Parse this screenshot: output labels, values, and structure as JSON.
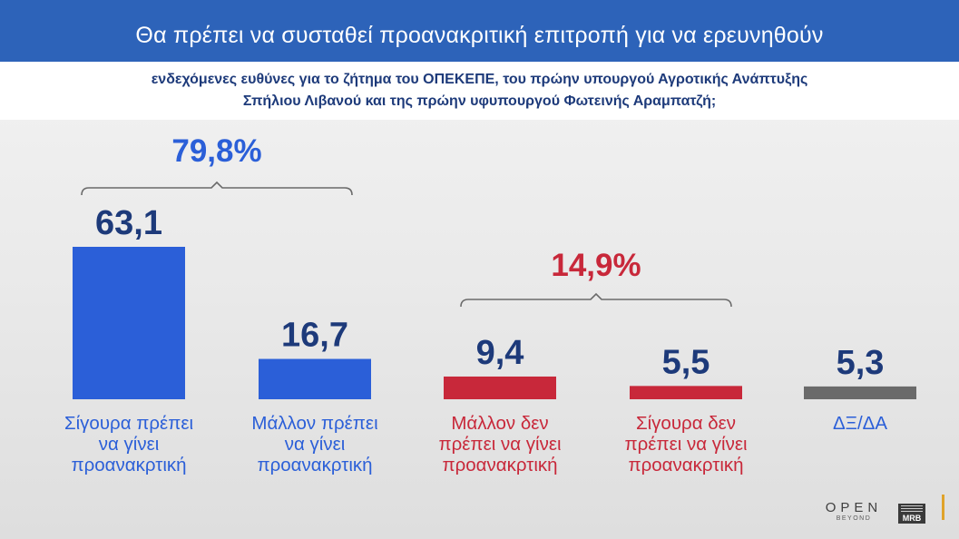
{
  "header": {
    "title": "Θα πρέπει να συσταθεί προανακριτική επιτροπή για να ερευνηθούν",
    "question_line1": "ενδεχόμενες ευθύνες για το ζήτημα του ΟΠΕΚΕΠΕ, του πρώην υπουργού Αγροτικής Ανάπτυξης",
    "question_line2": "Σπήλιου Λιβανού και της πρώην υφυπουργού Φωτεινής Αραμπατζή;"
  },
  "chart_data": {
    "type": "bar",
    "categories": [
      [
        "Σίγουρα πρέπει",
        "να γίνει",
        "προανακρτική"
      ],
      [
        "Μάλλον πρέπει",
        "να γίνει",
        "προανακρτική"
      ],
      [
        "Μάλλον δεν",
        "πρέπει να γίνει",
        "προανακρτική"
      ],
      [
        "Σίγουρα δεν",
        "πρέπει να γίνει",
        "προανακρτική"
      ],
      [
        "ΔΞ/ΔΑ"
      ]
    ],
    "values": [
      63.1,
      16.7,
      9.4,
      5.5,
      5.3
    ],
    "value_labels": [
      "63,1",
      "16,7",
      "9,4",
      "5,5",
      "5,3"
    ],
    "colors": [
      "#2b5fd8",
      "#2b5fd8",
      "#c8283a",
      "#c8283a",
      "#6a6a6a"
    ],
    "label_colors": [
      "#2b5fd8",
      "#2b5fd8",
      "#c8283a",
      "#c8283a",
      "#2b5fd8"
    ],
    "value_color": "#1d3a7a",
    "groups": [
      {
        "label": "79,8%",
        "value": 79.8,
        "bars": [
          0,
          1
        ],
        "color": "#2b5fd8"
      },
      {
        "label": "14,9%",
        "value": 14.9,
        "bars": [
          2,
          3
        ],
        "color": "#c8283a"
      }
    ],
    "ylim": [
      0,
      100
    ],
    "grid": false,
    "legend": "none"
  },
  "branding": {
    "open_logo": "OPEN",
    "open_tagline": "BEYOND",
    "mrb_logo": "MRB"
  }
}
